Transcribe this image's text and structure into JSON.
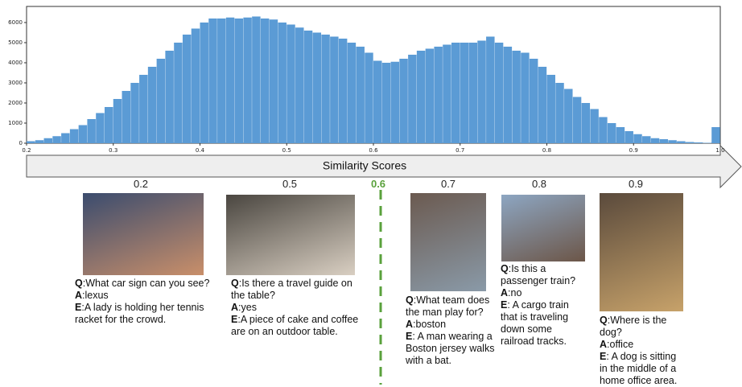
{
  "chart_data": {
    "type": "histogram",
    "x_label": "Similarity Scores",
    "color": "#5b9bd5",
    "bins": [
      0.2,
      0.21,
      0.22,
      0.23,
      0.24,
      0.25,
      0.26,
      0.27,
      0.28,
      0.29,
      0.3,
      0.31,
      0.32,
      0.33,
      0.34,
      0.35,
      0.36,
      0.37,
      0.38,
      0.39,
      0.4,
      0.41,
      0.42,
      0.43,
      0.44,
      0.45,
      0.46,
      0.47,
      0.48,
      0.49,
      0.5,
      0.51,
      0.52,
      0.53,
      0.54,
      0.55,
      0.56,
      0.57,
      0.58,
      0.59,
      0.6,
      0.61,
      0.62,
      0.63,
      0.64,
      0.65,
      0.66,
      0.67,
      0.68,
      0.69,
      0.7,
      0.71,
      0.72,
      0.73,
      0.74,
      0.75,
      0.76,
      0.77,
      0.78,
      0.79,
      0.8,
      0.81,
      0.82,
      0.83,
      0.84,
      0.85,
      0.86,
      0.87,
      0.88,
      0.89,
      0.9,
      0.91,
      0.92,
      0.93,
      0.94,
      0.95,
      0.96,
      0.97,
      0.98,
      0.99,
      1.0
    ],
    "values": [
      100,
      150,
      250,
      350,
      500,
      700,
      900,
      1200,
      1500,
      1800,
      2200,
      2600,
      3000,
      3400,
      3800,
      4200,
      4600,
      5000,
      5400,
      5700,
      6000,
      6200,
      6200,
      6250,
      6200,
      6250,
      6300,
      6200,
      6150,
      6000,
      5900,
      5750,
      5600,
      5500,
      5400,
      5300,
      5200,
      5000,
      4800,
      4500,
      4100,
      4000,
      4050,
      4200,
      4400,
      4600,
      4700,
      4800,
      4900,
      5000,
      5000,
      5000,
      5100,
      5300,
      5000,
      4800,
      4600,
      4500,
      4200,
      3800,
      3400,
      3000,
      2700,
      2300,
      2000,
      1700,
      1300,
      1000,
      800,
      600,
      450,
      350,
      250,
      200,
      150,
      100,
      60,
      40,
      20,
      800
    ],
    "xlim": [
      0.2,
      1.0
    ],
    "ylim": [
      0,
      6800
    ],
    "xticks": [
      0.2,
      0.3,
      0.4,
      0.5,
      0.6,
      0.7,
      0.8,
      0.9,
      {
        "value": 1.0,
        "label": "1.0"
      }
    ],
    "yticks": [
      0,
      1000,
      2000,
      3000,
      4000,
      5000,
      6000
    ]
  },
  "threshold": "0.6",
  "labels": {
    "q": "Q",
    "a": "A",
    "e": "E"
  },
  "examples": [
    {
      "score": "0.2",
      "question": ":What car sign can you see?",
      "answer": ":lexus",
      "explanation": ":A lady is holding her tennis racket for the crowd."
    },
    {
      "score": "0.5",
      "question": ":Is there a travel guide on the table?",
      "answer": ":yes",
      "explanation": ":A piece of cake and coffee are on an outdoor table."
    },
    {
      "score": "0.7",
      "question": ":What team does the man play for?",
      "answer": ":boston",
      "explanation": ": A man wearing a Boston jersey walks with a bat."
    },
    {
      "score": "0.8",
      "question": ":Is this a passenger train?",
      "answer": ":no",
      "explanation": ": A cargo train that is traveling down some railroad tracks."
    },
    {
      "score": "0.9",
      "question": ":Where is the dog?",
      "answer": ":office",
      "explanation": ": A dog is sitting in the middle of a home office area."
    }
  ]
}
